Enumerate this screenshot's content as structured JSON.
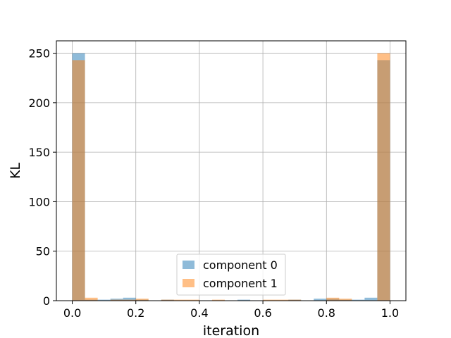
{
  "chart_data": {
    "type": "bar",
    "xlabel": "iteration",
    "ylabel": "KL",
    "xlim": [
      -0.05,
      1.05
    ],
    "ylim": [
      0,
      262.5
    ],
    "xticks": [
      "0.0",
      "0.2",
      "0.4",
      "0.6",
      "0.8",
      "1.0"
    ],
    "yticks": [
      "0",
      "50",
      "100",
      "150",
      "200",
      "250"
    ],
    "grid": true,
    "legend_position": "lower center",
    "bin_edges": [
      0.0,
      0.04,
      0.08,
      0.12,
      0.16,
      0.2,
      0.24,
      0.28,
      0.32,
      0.36,
      0.4,
      0.44,
      0.48,
      0.52,
      0.56,
      0.6,
      0.64,
      0.68,
      0.72,
      0.76,
      0.8,
      0.84,
      0.88,
      0.92,
      0.96,
      1.0
    ],
    "series": [
      {
        "name": "component 0",
        "color": "#1f77b4",
        "opacity": 0.5,
        "values": [
          250,
          1,
          1,
          2,
          3,
          1,
          0,
          1,
          0,
          0,
          0,
          0,
          0,
          1,
          0,
          0,
          0,
          1,
          0,
          2,
          2,
          1,
          1,
          3,
          243
        ]
      },
      {
        "name": "component 1",
        "color": "#ff7f0e",
        "opacity": 0.5,
        "values": [
          243,
          3,
          0,
          1,
          1,
          2,
          0,
          1,
          1,
          1,
          0,
          1,
          0,
          0,
          0,
          1,
          1,
          1,
          0,
          0,
          3,
          2,
          0,
          0,
          250
        ]
      }
    ]
  }
}
